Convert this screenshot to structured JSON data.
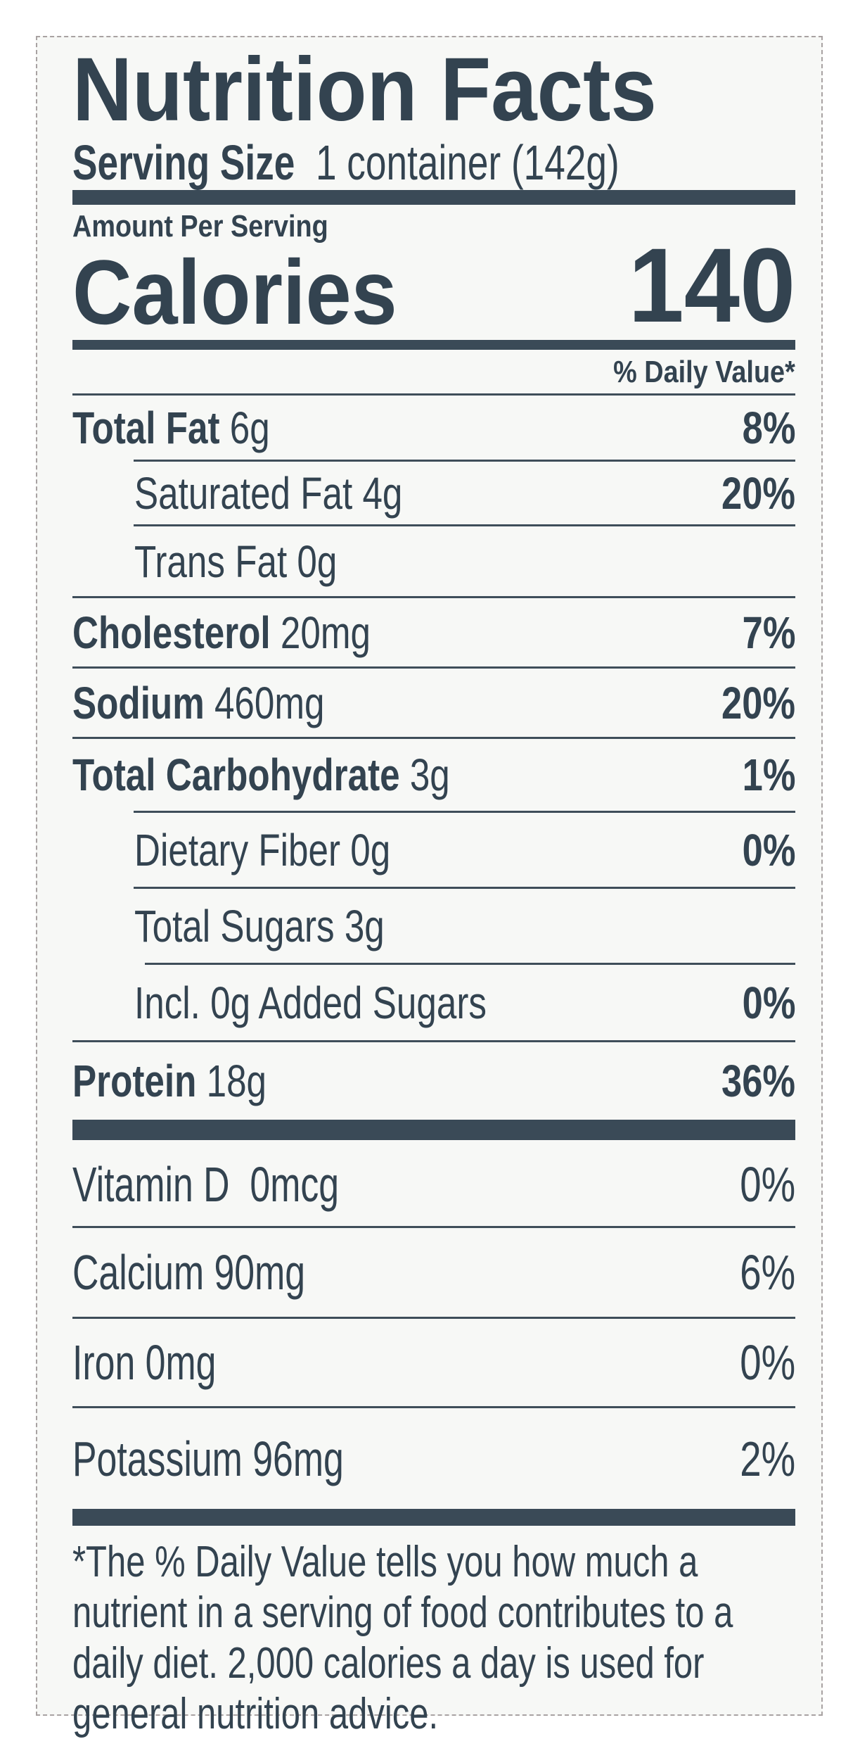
{
  "title": "Nutrition Facts",
  "serving": {
    "label": "Serving Size",
    "value": "1 container (142g)"
  },
  "amount_per_serving": "Amount Per Serving",
  "calories": {
    "label": "Calories",
    "value": "140"
  },
  "daily_value_header": "% Daily Value*",
  "nutrients": [
    {
      "name": "Total Fat",
      "amount": "6g",
      "dv": "8%",
      "bold": true,
      "indent": 0
    },
    {
      "name": "Saturated Fat",
      "amount": "4g",
      "dv": "20%",
      "bold": false,
      "indent": 1
    },
    {
      "name": "Trans Fat",
      "amount": "0g",
      "dv": "",
      "bold": false,
      "indent": 1
    },
    {
      "name": "Cholesterol",
      "amount": "20mg",
      "dv": "7%",
      "bold": true,
      "indent": 0
    },
    {
      "name": "Sodium",
      "amount": "460mg",
      "dv": "20%",
      "bold": true,
      "indent": 0
    },
    {
      "name": "Total Carbohydrate",
      "amount": "3g",
      "dv": "1%",
      "bold": true,
      "indent": 0
    },
    {
      "name": "Dietary Fiber",
      "amount": "0g",
      "dv": "0%",
      "bold": false,
      "indent": 1
    },
    {
      "name": "Total Sugars",
      "amount": "3g",
      "dv": "",
      "bold": false,
      "indent": 1
    },
    {
      "name": "Incl. 0g Added Sugars",
      "amount": "",
      "dv": "0%",
      "bold": false,
      "indent": 1
    },
    {
      "name": "Protein",
      "amount": "18g",
      "dv": "36%",
      "bold": true,
      "indent": 0
    }
  ],
  "vitamins": [
    {
      "name": "Vitamin D",
      "amount": "0mcg",
      "dv": "0%"
    },
    {
      "name": "Calcium",
      "amount": "90mg",
      "dv": "6%"
    },
    {
      "name": "Iron",
      "amount": "0mg",
      "dv": "0%"
    },
    {
      "name": "Potassium",
      "amount": "96mg",
      "dv": "2%"
    }
  ],
  "footnote": "*The % Daily Value tells you how much a nutrient in a serving of food contributes to a daily diet. 2,000 calories a day is used for general nutrition advice.",
  "colors": {
    "ink": "#334350",
    "background": "#f7f8f6"
  }
}
